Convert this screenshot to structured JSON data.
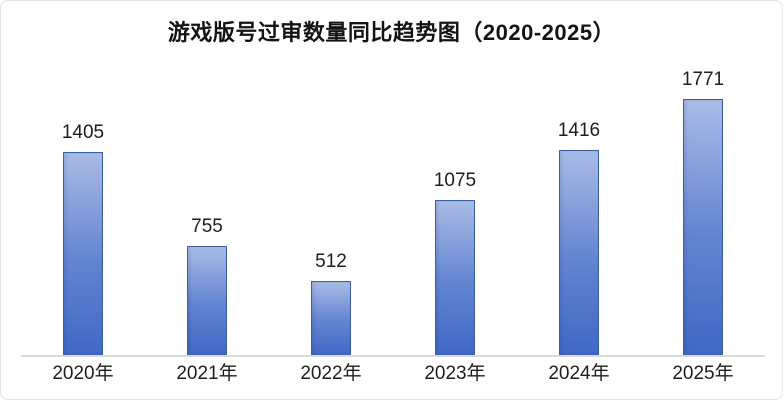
{
  "page": {
    "background": "#ffffff",
    "card_border_color": "#e4e4e4"
  },
  "chart_data": {
    "type": "bar",
    "title": "游戏版号过审数量同比趋势图（2020-2025）",
    "categories": [
      "2020年",
      "2021年",
      "2022年",
      "2023年",
      "2024年",
      "2025年"
    ],
    "values": [
      1405,
      755,
      512,
      1075,
      1416,
      1771
    ],
    "xlabel": "",
    "ylabel": "",
    "ylim": [
      0,
      1900
    ],
    "grid": false,
    "legend": false,
    "data_labels_visible": true,
    "title_color": "#141414",
    "label_color": "#1e1e1e",
    "bar_color_top": "#a9bce6",
    "bar_color_mid": "#6485d1",
    "bar_color_bottom": "#4068c5",
    "bar_border_color": "#3a5da8",
    "axis_line_color": "#d9d9d9"
  }
}
